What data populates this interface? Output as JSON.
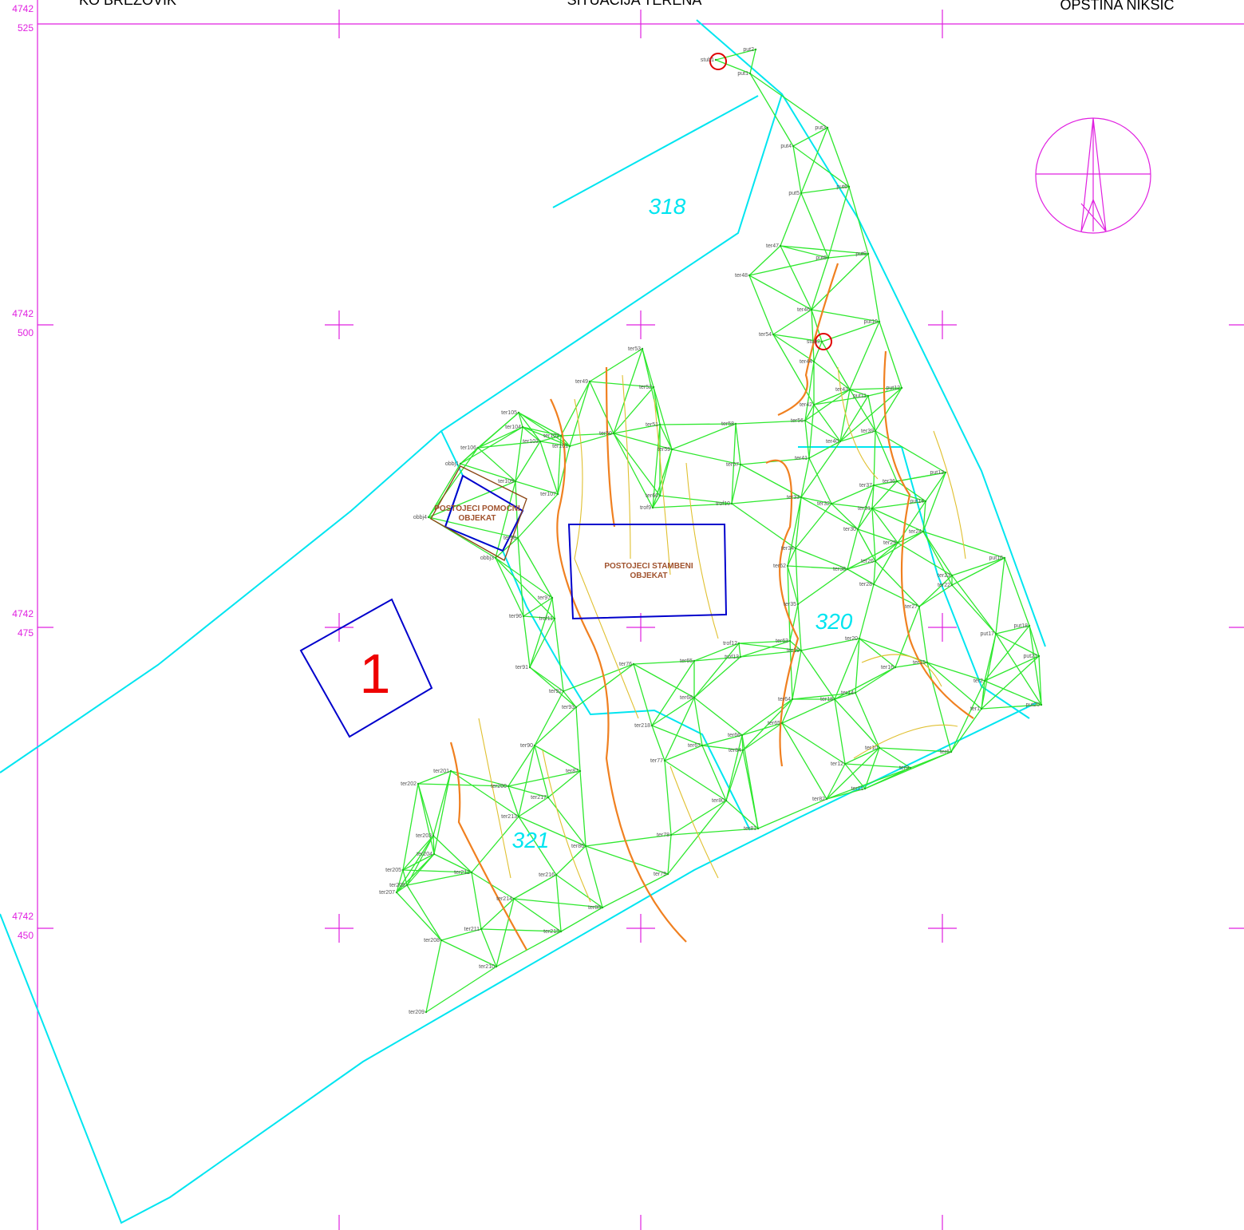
{
  "header": {
    "left": "KO BREZOVIK",
    "center": "SITUACIJA TERENA",
    "right": "OPSTINA NIKSIC"
  },
  "coords": [
    {
      "top": "4742",
      "bottom": "525"
    },
    {
      "top": "4742",
      "bottom": "500"
    },
    {
      "top": "4742",
      "bottom": "475"
    },
    {
      "top": "4742",
      "bottom": "450"
    }
  ],
  "parcels": [
    "318",
    "320",
    "321",
    "1"
  ],
  "buildings": [
    {
      "line1": "POSTOJECI POMOCNI",
      "line2": "OBJEKAT"
    },
    {
      "line1": "POSTOJECI STAMBENI",
      "line2": "OBJEKAT"
    }
  ],
  "points": [
    "stub1",
    "put2",
    "put1",
    "put3",
    "put4",
    "put5",
    "put6",
    "ter47",
    "put8",
    "put9",
    "ter48",
    "ter46",
    "put10",
    "ter54",
    "stub2",
    "ter53",
    "ter44",
    "ter49",
    "ter52",
    "ter43",
    "put11",
    "put12",
    "ter42",
    "ter105",
    "ter51",
    "ter58",
    "ter56",
    "ter104",
    "ter102",
    "ter50",
    "ter103",
    "ter101",
    "ter40",
    "ter39",
    "ter106",
    "ter59",
    "ter57",
    "ter41",
    "obbj1",
    "put13",
    "ter109",
    "ter36",
    "ter37",
    "ter60",
    "ter33",
    "ter32",
    "ter107",
    "put14",
    "trof10",
    "trof9",
    "obbj4",
    "ter31",
    "ter30",
    "ter24",
    "ter34",
    "ter29",
    "obbj3",
    "ter98",
    "put16",
    "ter62",
    "ter38",
    "ter26",
    "ter23",
    "ter28",
    "ter22",
    "ter35",
    "ter97",
    "ter27",
    "ter96",
    "trof11",
    "ter20",
    "put18",
    "put17",
    "trof12",
    "ter63",
    "ter19",
    "put21",
    "ter91",
    "trof13",
    "ter65",
    "ter76",
    "ter16",
    "ter15",
    "ter2",
    "ter92",
    "ter68",
    "ter64",
    "ter18",
    "ter14",
    "put20",
    "ter1",
    "ter93",
    "ter218",
    "ter66",
    "ter65",
    "ter90",
    "ter67",
    "ter84",
    "ter10",
    "ter6",
    "ter201",
    "ter87",
    "ter77",
    "ter12",
    "ter9",
    "ter202",
    "ter200",
    "ter217",
    "ter80",
    "ter82",
    "ter11",
    "ter213",
    "ter203",
    "ter86",
    "ter78",
    "ter81",
    "ter204",
    "ter205",
    "ter212",
    "ter216",
    "ter79",
    "ter206",
    "ter207",
    "ter214",
    "ter85",
    "ter211",
    "ter215",
    "ter208",
    "ter210",
    "ter209"
  ]
}
